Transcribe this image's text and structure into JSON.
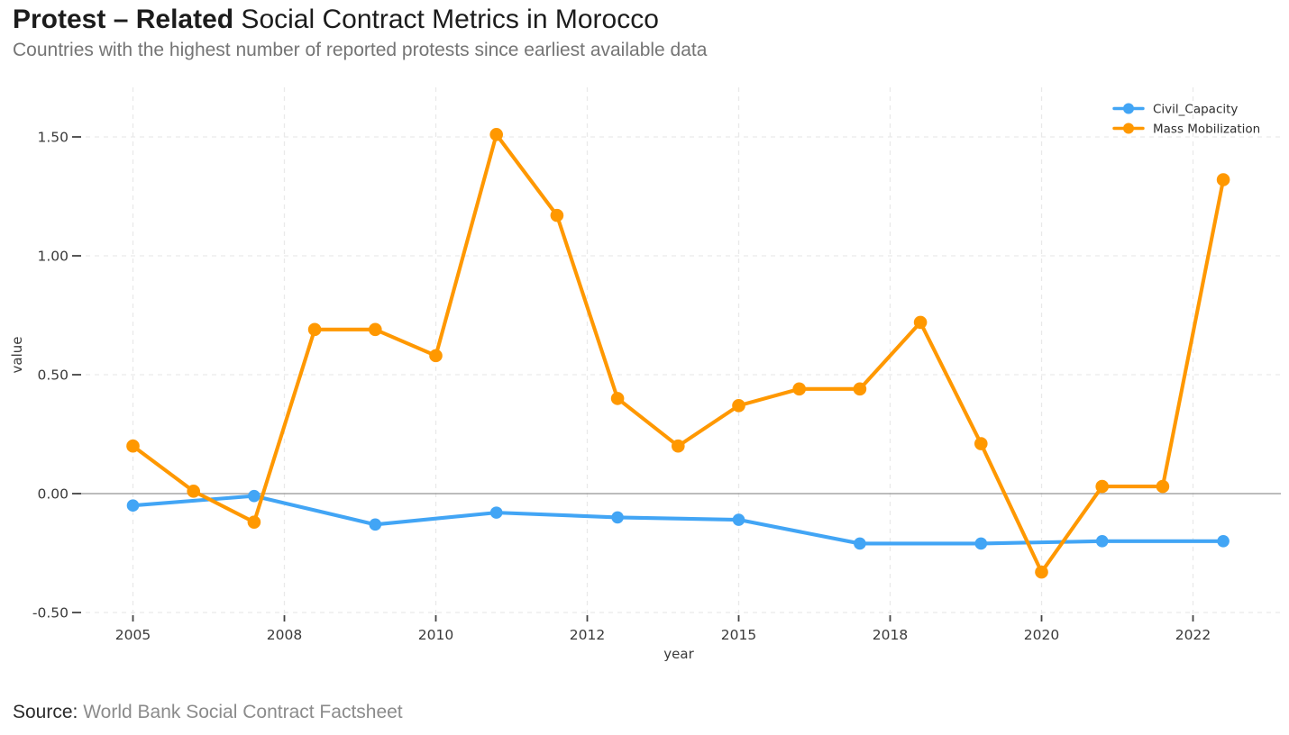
{
  "header": {
    "title_bold": "Protest – Related",
    "title_rest": " Social Contract Metrics in Morocco",
    "subtitle": "Countries with the highest number of reported protests since earliest available data"
  },
  "source": {
    "label": "Source:",
    "text": " World Bank Social Contract Factsheet"
  },
  "colors": {
    "civil_capacity": "#42a5f5",
    "mass_mobilization": "#ff9800",
    "zero_line": "#a6a6a6",
    "gridline": "#e9e9e9",
    "tick_text": "#3a3a3a",
    "legend_text": "#2e2e2e"
  },
  "chart_data": {
    "type": "line",
    "title": "Protest – Related Social Contract Metrics in Morocco",
    "xlabel": "year",
    "ylabel": "value",
    "x_axis": {
      "tick_labels": [
        "2005",
        "2008",
        "2010",
        "2012",
        "2015",
        "2018",
        "2020",
        "2022"
      ],
      "tick_positions": [
        0,
        2.5,
        5,
        7.5,
        10,
        12.5,
        15,
        17.5
      ]
    },
    "y_axis": {
      "tick_labels": [
        "1.50",
        "1.00",
        "0.50",
        "0.00",
        "-0.50"
      ],
      "tick_values": [
        1.5,
        1.0,
        0.5,
        0.0,
        -0.5
      ],
      "range": [
        -0.5,
        1.5
      ]
    },
    "point_count": 19,
    "grid": {
      "horizontal": true,
      "vertical": true,
      "style": "dashed",
      "zero_line": "solid"
    },
    "legend": {
      "position": "top-right",
      "entries": [
        "Civil_Capacity",
        "Mass Mobilization"
      ]
    },
    "series": [
      {
        "name": "Civil_Capacity",
        "color": "#42a5f5",
        "values": [
          -0.05,
          null,
          -0.01,
          null,
          -0.13,
          null,
          -0.08,
          null,
          -0.1,
          null,
          -0.11,
          null,
          -0.21,
          null,
          -0.21,
          null,
          -0.2,
          null,
          -0.2
        ]
      },
      {
        "name": "Mass Mobilization",
        "color": "#ff9800",
        "values": [
          0.2,
          0.01,
          -0.12,
          0.69,
          0.69,
          0.58,
          1.51,
          1.17,
          0.4,
          0.2,
          0.37,
          0.44,
          0.44,
          0.72,
          0.21,
          -0.33,
          0.03,
          0.03,
          1.32
        ]
      }
    ]
  }
}
